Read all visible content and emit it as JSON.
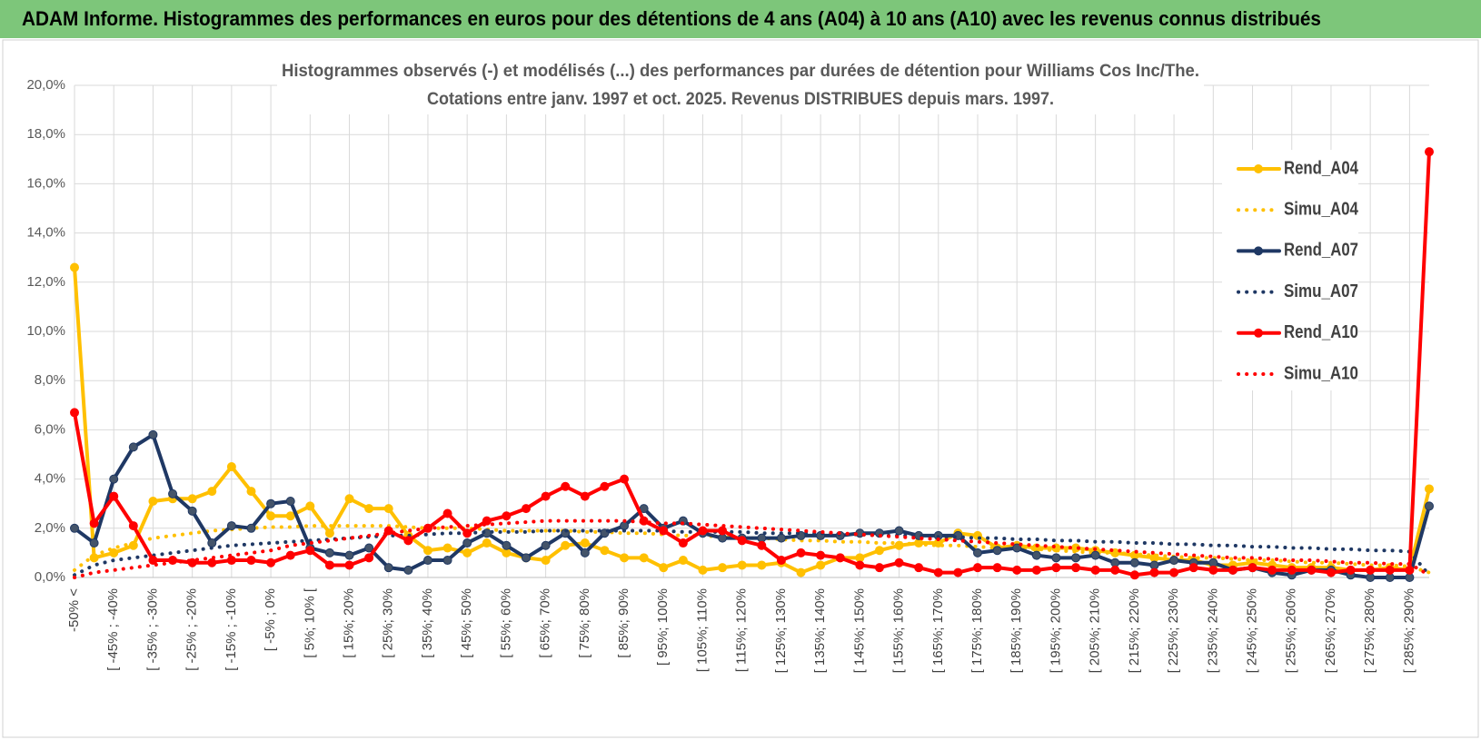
{
  "chart_data": {
    "type": "line",
    "title": "ADAM Informe. Histogrammes des performances en euros pour des détentions de 4 ans (A04) à 10 ans (A10) avec les revenus connus distribués",
    "subtitle": [
      "Histogrammes observés (-) et modélisés (...) des performances par durées de détention pour Williams Cos Inc/The.",
      "Cotations entre janv. 1997 et oct. 2025.  Revenus DISTRIBUES depuis mars. 1997."
    ],
    "categories": [
      "-50% <",
      null,
      "[ -45% ; -40%",
      null,
      "[ -35% ; -30%",
      null,
      "[ -25% ; -20%",
      null,
      "[ -15% ; -10%",
      null,
      "[ -5% ; 0%",
      null,
      "[ 5%; 10% [",
      null,
      "[ 15%; 20%",
      null,
      "[ 25%; 30%",
      null,
      "[ 35%; 40%",
      null,
      "[ 45%; 50%",
      null,
      "[ 55%; 60%",
      null,
      "[ 65%; 70%",
      null,
      "[ 75%; 80%",
      null,
      "[ 85%; 90%",
      null,
      "[ 95%; 100%",
      null,
      "[ 105%; 110%",
      null,
      "[ 115%; 120%",
      null,
      "[ 125%; 130%",
      null,
      "[ 135%; 140%",
      null,
      "[ 145%; 150%",
      null,
      "[ 155%; 160%",
      null,
      "[ 165%; 170%",
      null,
      "[ 175%; 180%",
      null,
      "[ 185%; 190%",
      null,
      "[ 195%; 200%",
      null,
      "[ 205%; 210%",
      null,
      "[ 215%; 220%",
      null,
      "[ 225%; 230%",
      null,
      "[ 235%; 240%",
      null,
      "[ 245%; 250%",
      null,
      "[ 255%; 260%",
      null,
      "[ 265%; 270%",
      null,
      "[ 275%; 280%",
      null,
      "[ 285%; 290%",
      null
    ],
    "series": [
      {
        "name": "Rend_A04",
        "color": "#FFC000",
        "line_style": "solid",
        "values": [
          12.6,
          0.8,
          1.0,
          1.3,
          3.1,
          3.2,
          3.2,
          3.5,
          4.5,
          3.5,
          2.5,
          2.5,
          2.9,
          1.8,
          3.2,
          2.8,
          2.8,
          1.7,
          1.1,
          1.2,
          1.0,
          1.4,
          1.0,
          0.8,
          0.7,
          1.3,
          1.4,
          1.1,
          0.8,
          0.8,
          0.4,
          0.7,
          0.3,
          0.4,
          0.5,
          0.5,
          0.6,
          0.2,
          0.5,
          0.8,
          0.8,
          1.1,
          1.3,
          1.4,
          1.4,
          1.8,
          1.7,
          1.2,
          1.3,
          1.2,
          1.2,
          1.2,
          1.1,
          1.0,
          0.9,
          0.8,
          0.7,
          0.7,
          0.5,
          0.5,
          0.6,
          0.5,
          0.4,
          0.4,
          0.4,
          0.3,
          0.3,
          0.4,
          0.3,
          3.6
        ]
      },
      {
        "name": "Simu_A04",
        "color": "#FFC000",
        "line_style": "dotted",
        "values": [
          0.3,
          0.9,
          1.2,
          1.4,
          1.6,
          1.7,
          1.8,
          1.9,
          1.95,
          2.0,
          2.05,
          2.05,
          2.1,
          2.1,
          2.1,
          2.1,
          2.1,
          2.05,
          2.0,
          2.0,
          2.0,
          1.95,
          1.9,
          1.9,
          1.9,
          1.9,
          1.85,
          1.85,
          1.8,
          1.8,
          1.75,
          1.7,
          1.7,
          1.65,
          1.6,
          1.6,
          1.55,
          1.5,
          1.5,
          1.45,
          1.45,
          1.4,
          1.4,
          1.35,
          1.3,
          1.3,
          1.25,
          1.2,
          1.2,
          1.15,
          1.1,
          1.05,
          1.0,
          1.0,
          0.95,
          0.9,
          0.85,
          0.8,
          0.8,
          0.75,
          0.7,
          0.7,
          0.65,
          0.6,
          0.6,
          0.55,
          0.5,
          0.5,
          0.45,
          0.2
        ]
      },
      {
        "name": "Rend_A07",
        "color": "#1F3864",
        "line_style": "solid",
        "values": [
          2.0,
          1.4,
          4.0,
          5.3,
          5.8,
          3.4,
          2.7,
          1.4,
          2.1,
          2.0,
          3.0,
          3.1,
          1.2,
          1.0,
          0.9,
          1.2,
          0.4,
          0.3,
          0.7,
          0.7,
          1.4,
          1.8,
          1.3,
          0.8,
          1.3,
          1.8,
          1.0,
          1.8,
          2.1,
          2.8,
          2.0,
          2.3,
          1.8,
          1.6,
          1.6,
          1.6,
          1.6,
          1.7,
          1.7,
          1.7,
          1.8,
          1.8,
          1.9,
          1.7,
          1.7,
          1.7,
          1.0,
          1.1,
          1.2,
          0.9,
          0.8,
          0.8,
          0.9,
          0.6,
          0.6,
          0.5,
          0.7,
          0.6,
          0.6,
          0.3,
          0.4,
          0.2,
          0.1,
          0.3,
          0.3,
          0.1,
          0.0,
          0.0,
          0.0,
          2.9
        ]
      },
      {
        "name": "Simu_A07",
        "color": "#1F3864",
        "line_style": "dotted",
        "values": [
          0.1,
          0.5,
          0.7,
          0.8,
          0.9,
          1.0,
          1.1,
          1.2,
          1.3,
          1.35,
          1.4,
          1.45,
          1.5,
          1.55,
          1.6,
          1.65,
          1.7,
          1.7,
          1.75,
          1.8,
          1.8,
          1.85,
          1.85,
          1.85,
          1.9,
          1.9,
          1.9,
          1.9,
          1.9,
          1.9,
          1.9,
          1.85,
          1.85,
          1.85,
          1.85,
          1.8,
          1.8,
          1.8,
          1.8,
          1.75,
          1.75,
          1.7,
          1.7,
          1.7,
          1.65,
          1.65,
          1.6,
          1.6,
          1.55,
          1.55,
          1.5,
          1.5,
          1.45,
          1.45,
          1.4,
          1.4,
          1.35,
          1.35,
          1.3,
          1.3,
          1.25,
          1.25,
          1.2,
          1.2,
          1.15,
          1.15,
          1.1,
          1.1,
          1.05,
          0.1
        ]
      },
      {
        "name": "Rend_A10",
        "color": "#FF0000",
        "line_style": "solid",
        "values": [
          6.7,
          2.2,
          3.3,
          2.1,
          0.7,
          0.7,
          0.6,
          0.6,
          0.7,
          0.7,
          0.6,
          0.9,
          1.1,
          0.5,
          0.5,
          0.8,
          1.9,
          1.5,
          2.0,
          2.6,
          1.8,
          2.3,
          2.5,
          2.8,
          3.3,
          3.7,
          3.3,
          3.7,
          4.0,
          2.3,
          1.9,
          1.4,
          1.9,
          1.9,
          1.5,
          1.3,
          0.7,
          1.0,
          0.9,
          0.8,
          0.5,
          0.4,
          0.6,
          0.4,
          0.2,
          0.2,
          0.4,
          0.4,
          0.3,
          0.3,
          0.4,
          0.4,
          0.3,
          0.3,
          0.1,
          0.2,
          0.2,
          0.4,
          0.3,
          0.3,
          0.4,
          0.3,
          0.3,
          0.3,
          0.2,
          0.3,
          0.3,
          0.3,
          0.3,
          17.3
        ]
      },
      {
        "name": "Simu_A10",
        "color": "#FF0000",
        "line_style": "dotted",
        "values": [
          0.0,
          0.2,
          0.3,
          0.4,
          0.5,
          0.6,
          0.7,
          0.8,
          0.9,
          1.0,
          1.1,
          1.3,
          1.4,
          1.5,
          1.6,
          1.7,
          1.8,
          1.9,
          2.0,
          2.05,
          2.1,
          2.15,
          2.2,
          2.25,
          2.3,
          2.3,
          2.3,
          2.3,
          2.3,
          2.25,
          2.2,
          2.2,
          2.15,
          2.1,
          2.05,
          2.0,
          1.95,
          1.9,
          1.85,
          1.8,
          1.75,
          1.7,
          1.65,
          1.6,
          1.55,
          1.5,
          1.45,
          1.4,
          1.35,
          1.3,
          1.25,
          1.2,
          1.15,
          1.1,
          1.05,
          1.0,
          0.95,
          0.9,
          0.85,
          0.8,
          0.8,
          0.75,
          0.7,
          0.7,
          0.65,
          0.6,
          0.6,
          0.55,
          0.55,
          0.1
        ]
      }
    ],
    "ylim": [
      0,
      20
    ],
    "yticks": [
      {
        "value": 0,
        "label": "0,0%"
      },
      {
        "value": 2,
        "label": "2,0%"
      },
      {
        "value": 4,
        "label": "4,0%"
      },
      {
        "value": 6,
        "label": "6,0%"
      },
      {
        "value": 8,
        "label": "8,0%"
      },
      {
        "value": 10,
        "label": "10,0%"
      },
      {
        "value": 12,
        "label": "12,0%"
      },
      {
        "value": 14,
        "label": "14,0%"
      },
      {
        "value": 16,
        "label": "16,0%"
      },
      {
        "value": 18,
        "label": "18,0%"
      },
      {
        "value": 20,
        "label": "20,0%"
      }
    ],
    "grid": true,
    "legend": "right"
  }
}
